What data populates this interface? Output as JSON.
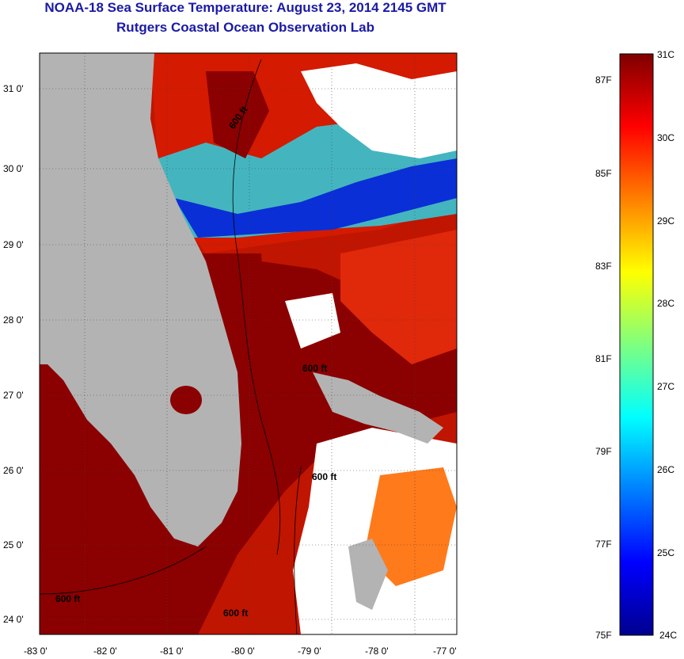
{
  "header": {
    "title": "NOAA-18 Sea Surface Temperature:  August 23, 2014 2145 GMT",
    "subtitle": "Rutgers Coastal Ocean Observation Lab"
  },
  "map": {
    "lon_range": [
      -83,
      -76.85
    ],
    "lat_range": [
      23.8,
      31.45
    ],
    "lat_ticks": [
      "24 0'",
      "25 0'",
      "26 0'",
      "27 0'",
      "28 0'",
      "29 0'",
      "30 0'",
      "31 0'"
    ],
    "lon_ticks": [
      "-83 0'",
      "-82 0'",
      "-81 0'",
      "-80 0'",
      "-79 0'",
      "-78 0'",
      "-77 0'"
    ],
    "contour_labels": [
      "600 ft",
      "600 ft",
      "600 ft",
      "600 ft",
      "600 ft"
    ],
    "colors": {
      "land": "#b3b3b3",
      "cloud": "#ffffff",
      "warm_water": "#8b0000",
      "ocean_red": "#d41a00",
      "cold_blue": "#0a2fd6",
      "cool_cyan": "#2ad1e0"
    }
  },
  "colorbar": {
    "celsius": [
      "31C",
      "30C",
      "29C",
      "28C",
      "27C",
      "26C",
      "25C",
      "24C"
    ],
    "fahrenheit": [
      "87F",
      "85F",
      "83F",
      "81F",
      "79F",
      "77F",
      "75F"
    ],
    "range_c": [
      24,
      31
    ]
  }
}
